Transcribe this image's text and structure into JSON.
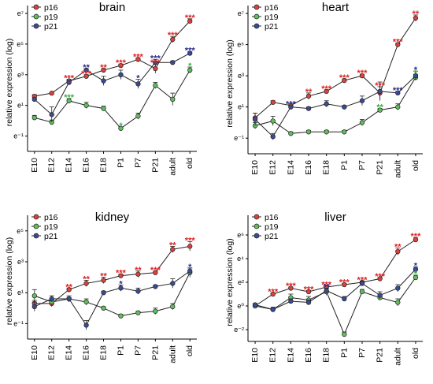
{
  "colors": {
    "p16": "#e0403a",
    "p19": "#5cc258",
    "p21": "#3a4a9a",
    "star_p16": "#e02020",
    "star_p19": "#3fae49",
    "star_p21": "#2a2d86"
  },
  "chart_data": [
    {
      "type": "line",
      "title": "brain",
      "ylabel": "relative expression (log)",
      "yscale": "log",
      "yticks": [
        "e⁻¹",
        "e¹",
        "e³",
        "e⁵",
        "e⁷"
      ],
      "ylim_exponent": [
        -2,
        7
      ],
      "categories": [
        "E10",
        "E12",
        "E14",
        "E16",
        "E18",
        "P1",
        "P7",
        "P21",
        "adult",
        "old"
      ],
      "legend": "top-left",
      "series": [
        {
          "name": "p16",
          "log_values": [
            1.6,
            1.8,
            2.6,
            2.9,
            3.3,
            3.6,
            4.0,
            3.4,
            5.3,
            6.5
          ],
          "err": [
            0.1,
            0.05,
            0.1,
            0.1,
            0.1,
            0.1,
            0.1,
            0.3,
            0.2,
            0.15
          ]
        },
        {
          "name": "p19",
          "log_values": [
            0.2,
            -0.1,
            1.3,
            1.0,
            0.8,
            -0.5,
            0.3,
            2.3,
            1.4,
            3.3
          ],
          "err": [
            0.15,
            0.15,
            0.15,
            0.2,
            0.15,
            0.1,
            0.2,
            0.2,
            0.4,
            0.2
          ]
        },
        {
          "name": "p21",
          "log_values": [
            1.4,
            0.4,
            2.5,
            3.3,
            2.6,
            3.0,
            2.4,
            3.8,
            3.8,
            4.4
          ],
          "err": [
            0.1,
            0.5,
            0.1,
            0.1,
            0.3,
            0.3,
            0.3,
            0.2,
            0.1,
            0.1
          ]
        }
      ],
      "annotations": [
        {
          "category": "E14",
          "series": "p16",
          "text": "***"
        },
        {
          "category": "E14",
          "series": "p19",
          "text": "***"
        },
        {
          "category": "E16",
          "series": "p16",
          "text": "***"
        },
        {
          "category": "E16",
          "series": "p21",
          "text": "**"
        },
        {
          "category": "E18",
          "series": "p16",
          "text": "**"
        },
        {
          "category": "P1",
          "series": "p16",
          "text": "***"
        },
        {
          "category": "P1",
          "series": "p19",
          "text": "*"
        },
        {
          "category": "P7",
          "series": "p16",
          "text": "***"
        },
        {
          "category": "P7",
          "series": "p21",
          "text": "*"
        },
        {
          "category": "P21",
          "series": "p16",
          "text": "***"
        },
        {
          "category": "P21",
          "series": "p21",
          "text": "***"
        },
        {
          "category": "adult",
          "series": "p16",
          "text": "***"
        },
        {
          "category": "old",
          "series": "p16",
          "text": "***"
        },
        {
          "category": "old",
          "series": "p21",
          "text": "***"
        },
        {
          "category": "old",
          "series": "p19",
          "text": "*"
        }
      ]
    },
    {
      "type": "line",
      "title": "heart",
      "ylabel": "relative expression (log)",
      "yscale": "log",
      "yticks": [
        "e⁻¹",
        "e¹",
        "e³",
        "e⁵",
        "e⁷"
      ],
      "ylim_exponent": [
        -2,
        7
      ],
      "categories": [
        "E10",
        "E12",
        "E14",
        "E16",
        "E18",
        "P1",
        "P7",
        "P21",
        "adult",
        "old"
      ],
      "legend": "top-left",
      "series": [
        {
          "name": "p16",
          "log_values": [
            0.3,
            1.3,
            1.1,
            1.7,
            2.0,
            2.7,
            3.0,
            1.9,
            5.0,
            6.7
          ],
          "err": [
            0.3,
            0.1,
            0.1,
            0.2,
            0.1,
            0.1,
            0.1,
            0.4,
            0.1,
            0.2
          ]
        },
        {
          "name": "p19",
          "log_values": [
            -0.2,
            0.1,
            -0.7,
            -0.6,
            -0.6,
            -0.6,
            0.0,
            0.8,
            1.0,
            2.9
          ],
          "err": [
            0.2,
            0.3,
            0.1,
            0.1,
            0.1,
            0.1,
            0.2,
            0.1,
            0.2,
            0.2
          ]
        },
        {
          "name": "p21",
          "log_values": [
            0.2,
            -0.9,
            1.0,
            0.9,
            1.2,
            1.0,
            1.4,
            2.0,
            1.9,
            3.0
          ],
          "err": [
            0.4,
            0.2,
            0.1,
            0.1,
            0.2,
            0.1,
            0.3,
            0.6,
            0.1,
            0.3
          ]
        }
      ],
      "annotations": [
        {
          "category": "E14",
          "series": "p21",
          "text": "***"
        },
        {
          "category": "E16",
          "series": "p16",
          "text": "**"
        },
        {
          "category": "E18",
          "series": "p16",
          "text": "***"
        },
        {
          "category": "P1",
          "series": "p16",
          "text": "***"
        },
        {
          "category": "P7",
          "series": "p16",
          "text": "***"
        },
        {
          "category": "P21",
          "series": "p16",
          "text": "***"
        },
        {
          "category": "P21",
          "series": "p19",
          "text": "**"
        },
        {
          "category": "adult",
          "series": "p16",
          "text": "***"
        },
        {
          "category": "adult",
          "series": "p21",
          "text": "***"
        },
        {
          "category": "old",
          "series": "p16",
          "text": "**"
        },
        {
          "category": "old",
          "series": "p21",
          "text": "*"
        },
        {
          "category": "old",
          "series": "p19",
          "text": "*"
        }
      ]
    },
    {
      "type": "line",
      "title": "kidney",
      "ylabel": "relative expression (log)",
      "yscale": "log",
      "yticks": [
        "e⁻¹",
        "e¹",
        "e³",
        "e⁵"
      ],
      "ylim_exponent": [
        -2,
        5.5
      ],
      "categories": [
        "E10",
        "E12",
        "E14",
        "E16",
        "E18",
        "P1",
        "P7",
        "P21",
        "adult",
        "old"
      ],
      "legend": "top-left",
      "series": [
        {
          "name": "p16",
          "log_values": [
            0.3,
            0.3,
            1.2,
            1.6,
            1.8,
            2.1,
            2.2,
            2.3,
            3.8,
            4.0
          ],
          "err": [
            0.2,
            0.2,
            0.1,
            0.2,
            0.2,
            0.1,
            0.2,
            0.1,
            0.2,
            0.3
          ]
        },
        {
          "name": "p19",
          "log_values": [
            0.8,
            0.4,
            0.6,
            0.4,
            0.0,
            -0.5,
            -0.3,
            -0.2,
            0.1,
            2.3
          ],
          "err": [
            0.4,
            0.2,
            0.2,
            0.2,
            0.1,
            0.1,
            0.1,
            0.2,
            0.2,
            0.3
          ]
        },
        {
          "name": "p21",
          "log_values": [
            0.1,
            0.6,
            0.6,
            -1.1,
            1.0,
            1.3,
            1.1,
            1.4,
            1.6,
            2.4
          ],
          "err": [
            0.3,
            0.2,
            0.1,
            0.3,
            0.1,
            0.2,
            0.2,
            0.1,
            0.3,
            0.2
          ]
        }
      ],
      "annotations": [
        {
          "category": "E14",
          "series": "p16",
          "text": "**"
        },
        {
          "category": "E16",
          "series": "p16",
          "text": "**"
        },
        {
          "category": "E18",
          "series": "p16",
          "text": "**"
        },
        {
          "category": "P1",
          "series": "p16",
          "text": "***"
        },
        {
          "category": "P1",
          "series": "p21",
          "text": "*"
        },
        {
          "category": "P7",
          "series": "p16",
          "text": "**"
        },
        {
          "category": "P21",
          "series": "p16",
          "text": "***"
        },
        {
          "category": "adult",
          "series": "p16",
          "text": "**"
        },
        {
          "category": "old",
          "series": "p16",
          "text": "***"
        },
        {
          "category": "old",
          "series": "p21",
          "text": "*"
        }
      ]
    },
    {
      "type": "line",
      "title": "liver",
      "ylabel": "relative expression (log)",
      "yscale": "log",
      "yticks": [
        "e⁻²",
        "e⁰",
        "e²",
        "e⁴",
        "e⁶"
      ],
      "ylim_exponent": [
        -3,
        7
      ],
      "categories": [
        "E10",
        "E12",
        "E14",
        "E16",
        "E18",
        "P1",
        "P7",
        "P21",
        "adult",
        "old"
      ],
      "legend": "top-left",
      "series": [
        {
          "name": "p16",
          "log_values": [
            0.0,
            1.0,
            1.5,
            1.2,
            1.6,
            1.8,
            2.0,
            2.3,
            4.6,
            5.6
          ],
          "err": [
            0.1,
            0.1,
            0.1,
            0.1,
            0.1,
            0.1,
            0.1,
            0.1,
            0.3,
            0.2
          ]
        },
        {
          "name": "p19",
          "log_values": [
            0.0,
            -0.3,
            0.7,
            0.5,
            1.2,
            -2.4,
            1.2,
            0.7,
            0.3,
            2.4
          ],
          "err": [
            0.2,
            0.2,
            0.3,
            0.3,
            0.3,
            0.2,
            0.2,
            0.2,
            0.3,
            0.2
          ]
        },
        {
          "name": "p21",
          "log_values": [
            0.1,
            -0.3,
            0.4,
            0.3,
            1.3,
            0.6,
            1.9,
            0.9,
            1.5,
            3.1
          ],
          "err": [
            0.1,
            0.1,
            0.2,
            0.2,
            0.2,
            0.2,
            0.2,
            0.3,
            0.3,
            0.2
          ]
        }
      ],
      "annotations": [
        {
          "category": "E12",
          "series": "p16",
          "text": "***"
        },
        {
          "category": "E14",
          "series": "p16",
          "text": "***"
        },
        {
          "category": "E16",
          "series": "p16",
          "text": "***"
        },
        {
          "category": "E18",
          "series": "p16",
          "text": "***"
        },
        {
          "category": "E18",
          "series": "p21",
          "text": "**"
        },
        {
          "category": "P1",
          "series": "p16",
          "text": "***"
        },
        {
          "category": "P7",
          "series": "p16",
          "text": "***"
        },
        {
          "category": "P21",
          "series": "p16",
          "text": "***"
        },
        {
          "category": "adult",
          "series": "p16",
          "text": "**"
        },
        {
          "category": "old",
          "series": "p16",
          "text": "***"
        },
        {
          "category": "old",
          "series": "p21",
          "text": "*"
        },
        {
          "category": "old",
          "series": "p19",
          "text": "*"
        }
      ]
    }
  ]
}
